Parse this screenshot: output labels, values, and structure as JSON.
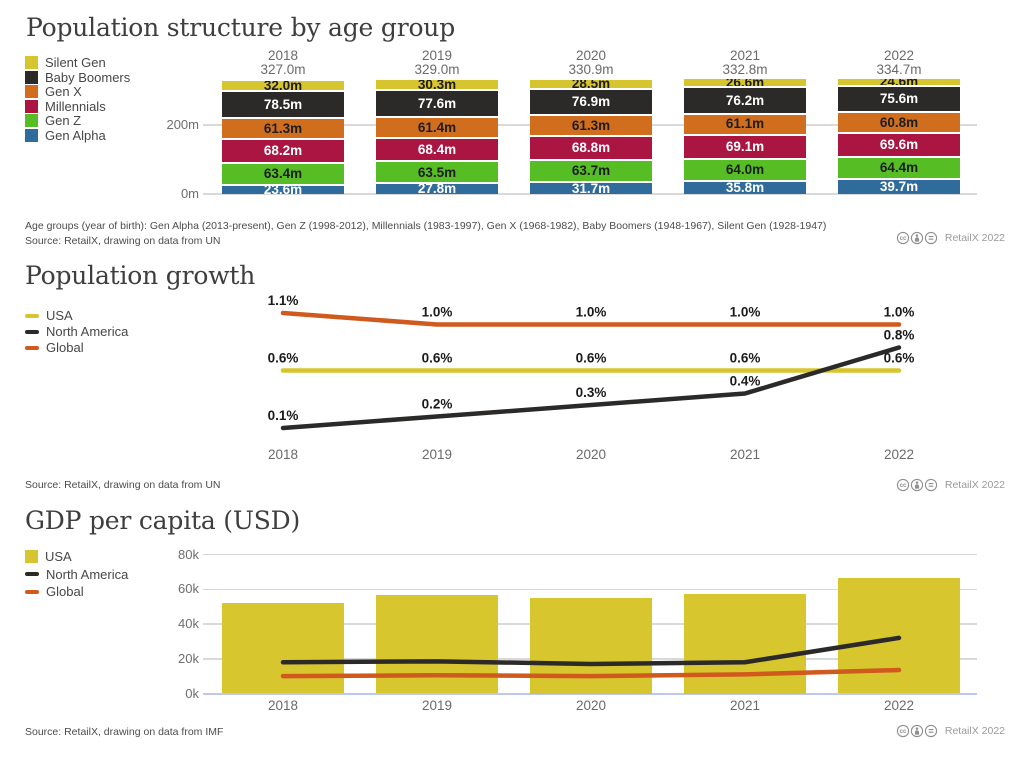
{
  "years": [
    "2018",
    "2019",
    "2020",
    "2021",
    "2022"
  ],
  "sections": [
    {
      "title": "Population structure by age group",
      "legend": [
        {
          "label": "Silent Gen",
          "color": "#d7c52f",
          "swatch": "square"
        },
        {
          "label": "Baby Boomers",
          "color": "#2c2a28",
          "swatch": "square"
        },
        {
          "label": "Gen X",
          "color": "#d06e1e",
          "swatch": "square"
        },
        {
          "label": "Millennials",
          "color": "#aa1541",
          "swatch": "square"
        },
        {
          "label": "Gen Z",
          "color": "#56bd24",
          "swatch": "square"
        },
        {
          "label": "Gen Alpha",
          "color": "#2f6b9b",
          "swatch": "square"
        }
      ],
      "footnote": "Age groups (year of birth): Gen Alpha (2013-present), Gen Z (1998-2012), Millennials (1983-1997), Gen X (1968-1982), Baby Boomers (1948-1967), Silent Gen (1928-1947)",
      "source": "Source: RetailX, drawing on data from UN",
      "credit": "RetailX 2022"
    },
    {
      "title": "Population growth",
      "legend": [
        {
          "label": "USA",
          "color": "#d7c52f",
          "swatch": "line"
        },
        {
          "label": "North America",
          "color": "#2c2a28",
          "swatch": "line"
        },
        {
          "label": "Global",
          "color": "#d0591d",
          "swatch": "line"
        }
      ],
      "source": "Source: RetailX, drawing on data from UN",
      "credit": "RetailX 2022"
    },
    {
      "title": "GDP per capita (USD)",
      "legend": [
        {
          "label": "USA",
          "color": "#d7c52f",
          "swatch": "square"
        },
        {
          "label": "North America",
          "color": "#2c2a28",
          "swatch": "line"
        },
        {
          "label": "Global",
          "color": "#d0591d",
          "swatch": "line"
        }
      ],
      "source": "Source: RetailX, drawing on data from IMF",
      "credit": "RetailX 2022"
    }
  ],
  "chart_data": [
    {
      "type": "bar",
      "stacked": true,
      "categories": [
        "2018",
        "2019",
        "2020",
        "2021",
        "2022"
      ],
      "totals_labels": [
        "327.0m",
        "329.0m",
        "330.9m",
        "332.8m",
        "334.7m"
      ],
      "unit": "m",
      "ylim": [
        0,
        200
      ],
      "yticks": [
        {
          "label": "200m",
          "value": 200
        },
        {
          "label": "0m",
          "value": 0
        }
      ],
      "series": [
        {
          "name": "Silent Gen",
          "color": "#d7c52f",
          "label_color": "#1d1d1d",
          "values": [
            32.0,
            30.3,
            28.5,
            26.6,
            24.6
          ],
          "labels": [
            "32.0m",
            "30.3m",
            "28.5m",
            "26.6m",
            "24.6m"
          ]
        },
        {
          "name": "Baby Boomers",
          "color": "#2c2a28",
          "label_color": "#ffffff",
          "values": [
            78.5,
            77.6,
            76.9,
            76.2,
            75.6
          ],
          "labels": [
            "78.5m",
            "77.6m",
            "76.9m",
            "76.2m",
            "75.6m"
          ]
        },
        {
          "name": "Gen X",
          "color": "#d06e1e",
          "label_color": "#1d1d1d",
          "values": [
            61.3,
            61.4,
            61.3,
            61.1,
            60.8
          ],
          "labels": [
            "61.3m",
            "61.4m",
            "61.3m",
            "61.1m",
            "60.8m"
          ]
        },
        {
          "name": "Millennials",
          "color": "#aa1541",
          "label_color": "#ffffff",
          "values": [
            68.2,
            68.4,
            68.8,
            69.1,
            69.6
          ],
          "labels": [
            "68.2m",
            "68.4m",
            "68.8m",
            "69.1m",
            "69.6m"
          ]
        },
        {
          "name": "Gen Z",
          "color": "#56bd24",
          "label_color": "#1d1d1d",
          "values": [
            63.4,
            63.5,
            63.7,
            64.0,
            64.4
          ],
          "labels": [
            "63.4m",
            "63.5m",
            "63.7m",
            "64.0m",
            "64.4m"
          ]
        },
        {
          "name": "Gen Alpha",
          "color": "#2f6b9b",
          "label_color": "#ffffff",
          "values": [
            23.6,
            27.8,
            31.7,
            35.8,
            39.7
          ],
          "labels": [
            "23.6m",
            "27.8m",
            "31.7m",
            "35.8m",
            "39.7m"
          ]
        }
      ]
    },
    {
      "type": "line",
      "x": [
        "2018",
        "2019",
        "2020",
        "2021",
        "2022"
      ],
      "unit": "%",
      "ylim": [
        0,
        1.3
      ],
      "grid": false,
      "legend_position": "left",
      "series": [
        {
          "name": "USA",
          "color": "#d7c52f",
          "values": [
            0.6,
            0.6,
            0.6,
            0.6,
            0.6
          ],
          "labels": [
            "0.6%",
            "0.6%",
            "0.6%",
            "0.6%",
            "0.6%"
          ]
        },
        {
          "name": "North America",
          "color": "#2c2a28",
          "values": [
            0.1,
            0.2,
            0.3,
            0.4,
            0.8
          ],
          "labels": [
            "0.1%",
            "0.2%",
            "0.3%",
            "0.4%",
            "0.8%"
          ]
        },
        {
          "name": "Global",
          "color": "#d0591d",
          "values": [
            1.1,
            1.0,
            1.0,
            1.0,
            1.0
          ],
          "labels": [
            "1.1%",
            "1.0%",
            "1.0%",
            "1.0%",
            "1.0%"
          ]
        }
      ]
    },
    {
      "type": "bar+line",
      "x": [
        "2018",
        "2019",
        "2020",
        "2021",
        "2022"
      ],
      "unit": "USD",
      "ylim": [
        0,
        80000
      ],
      "yticks": [
        {
          "label": "0k",
          "value": 0
        },
        {
          "label": "20k",
          "value": 20000
        },
        {
          "label": "40k",
          "value": 40000
        },
        {
          "label": "60k",
          "value": 60000
        },
        {
          "label": "80k",
          "value": 80000
        }
      ],
      "bar_series": {
        "name": "USA",
        "color": "#d8c62f",
        "values": [
          52000,
          56500,
          55000,
          57500,
          66500
        ]
      },
      "line_series": [
        {
          "name": "North America",
          "color": "#2c2a28",
          "values": [
            18000,
            18500,
            17000,
            18000,
            32000
          ]
        },
        {
          "name": "Global",
          "color": "#d0591d",
          "values": [
            10000,
            10500,
            10000,
            11000,
            13500
          ]
        }
      ]
    }
  ]
}
